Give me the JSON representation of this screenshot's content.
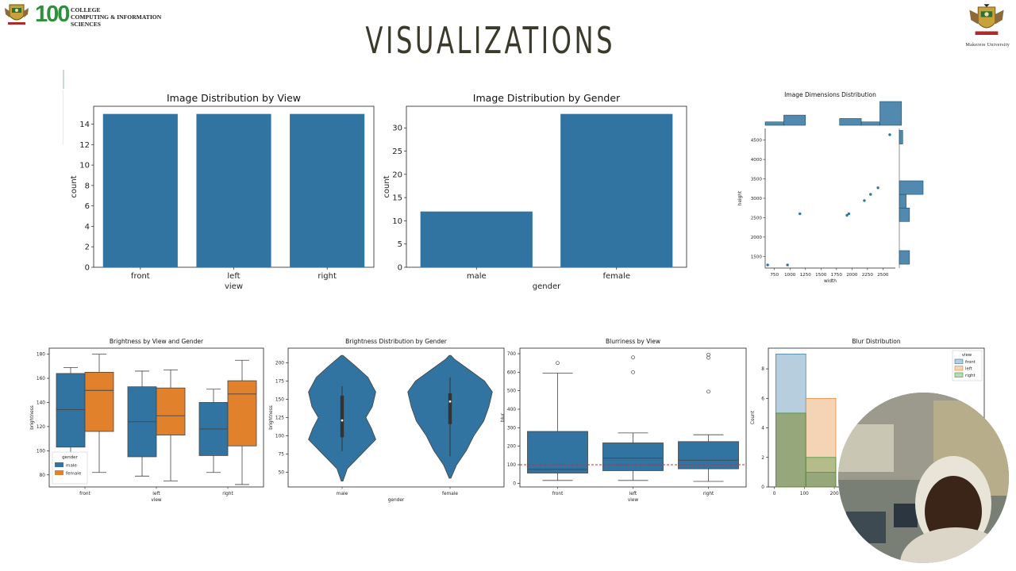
{
  "header": {
    "college_number": "100",
    "college_name_lines": [
      "COLLEGE",
      "COMPUTING & INFORMATION",
      "SCIENCES"
    ],
    "university_caption": "Makerere University",
    "page_title": "VISUALIZATIONS"
  },
  "colors": {
    "blue": "#3274a1",
    "orange": "#e1812c",
    "green": "#3a923a",
    "title": "#3b3a2a"
  },
  "icons": {
    "left_logo": "makerere-crest-icon",
    "right_logo": "makerere-crest-icon",
    "webcam": "presenter-webcam"
  },
  "chart_data": [
    {
      "id": "view",
      "type": "bar",
      "title": "Image Distribution by View",
      "xlabel": "view",
      "ylabel": "count",
      "categories": [
        "front",
        "left",
        "right"
      ],
      "values": [
        15,
        15,
        15
      ],
      "ylim": [
        0,
        15.75
      ],
      "yticks": [
        0,
        2,
        4,
        6,
        8,
        10,
        12,
        14
      ]
    },
    {
      "id": "gender",
      "type": "bar",
      "title": "Image Distribution by Gender",
      "xlabel": "gender",
      "ylabel": "count",
      "categories": [
        "male",
        "female"
      ],
      "values": [
        12,
        33
      ],
      "ylim": [
        0,
        34.65
      ],
      "yticks": [
        0,
        5,
        10,
        15,
        20,
        25,
        30
      ]
    },
    {
      "id": "dims",
      "type": "scatter",
      "title": "Image Dimensions Distribution",
      "xlabel": "width",
      "ylabel": "height",
      "xlim": [
        600,
        2700
      ],
      "ylim": [
        1200,
        4800
      ],
      "xticks": [
        750,
        1000,
        1250,
        1500,
        1750,
        2000,
        2250,
        2500
      ],
      "yticks": [
        1500,
        2000,
        2500,
        3000,
        3500,
        4000,
        4500
      ],
      "points": [
        {
          "x": 640,
          "y": 1280
        },
        {
          "x": 960,
          "y": 1280
        },
        {
          "x": 1160,
          "y": 2600
        },
        {
          "x": 1920,
          "y": 2560
        },
        {
          "x": 1950,
          "y": 2600
        },
        {
          "x": 2200,
          "y": 2940
        },
        {
          "x": 2300,
          "y": 3100
        },
        {
          "x": 2420,
          "y": 3270
        },
        {
          "x": 2610,
          "y": 4640
        }
      ],
      "top_hist": [
        {
          "x0": 600,
          "x1": 900,
          "v": 1
        },
        {
          "x0": 900,
          "x1": 1250,
          "v": 3
        },
        {
          "x0": 1800,
          "x1": 2150,
          "v": 2
        },
        {
          "x0": 2150,
          "x1": 2450,
          "v": 1
        },
        {
          "x0": 2450,
          "x1": 2800,
          "v": 7
        }
      ],
      "right_hist": [
        {
          "y0": 1300,
          "y1": 1650,
          "v": 3
        },
        {
          "y0": 2400,
          "y1": 2750,
          "v": 3
        },
        {
          "y0": 2750,
          "y1": 3100,
          "v": 2
        },
        {
          "y0": 3100,
          "y1": 3450,
          "v": 7
        },
        {
          "y0": 4400,
          "y1": 4750,
          "v": 1
        }
      ]
    },
    {
      "id": "bright",
      "type": "box",
      "title": "Brightness by View and Gender",
      "xlabel": "view",
      "ylabel": "brightness",
      "categories": [
        "front",
        "left",
        "right"
      ],
      "ylim": [
        70,
        185
      ],
      "yticks": [
        80,
        100,
        120,
        140,
        160,
        180
      ],
      "legend_title": "gender",
      "legend_position": "lower-left",
      "series": [
        {
          "name": "male",
          "boxes": [
            {
              "min": 93,
              "q1": 103,
              "med": 134,
              "q3": 164,
              "max": 169
            },
            {
              "min": 79,
              "q1": 95,
              "med": 124,
              "q3": 153,
              "max": 166
            },
            {
              "min": 82,
              "q1": 96,
              "med": 118,
              "q3": 140,
              "max": 151
            }
          ]
        },
        {
          "name": "female",
          "boxes": [
            {
              "min": 82,
              "q1": 116,
              "med": 150,
              "q3": 165,
              "max": 180
            },
            {
              "min": 75,
              "q1": 113,
              "med": 129,
              "q3": 152,
              "max": 167
            },
            {
              "min": 72,
              "q1": 104,
              "med": 147,
              "q3": 158,
              "max": 175
            }
          ]
        }
      ]
    },
    {
      "id": "violin",
      "type": "violin",
      "title": "Brightness Distribution by Gender",
      "xlabel": "gender",
      "ylabel": "brightness",
      "categories": [
        "male",
        "female"
      ],
      "ylim": [
        30,
        220
      ],
      "yticks": [
        50,
        75,
        100,
        125,
        150,
        175,
        200
      ],
      "violins": [
        {
          "name": "male",
          "min": 79,
          "q1": 98,
          "med": 121,
          "q3": 155,
          "max": 168,
          "lo": 38,
          "hi": 210,
          "profile": [
            [
              38,
              0.02
            ],
            [
              55,
              0.12
            ],
            [
              75,
              0.45
            ],
            [
              95,
              0.78
            ],
            [
              110,
              0.68
            ],
            [
              125,
              0.55
            ],
            [
              140,
              0.7
            ],
            [
              160,
              0.78
            ],
            [
              180,
              0.6
            ],
            [
              195,
              0.32
            ],
            [
              210,
              0.02
            ]
          ]
        },
        {
          "name": "female",
          "min": 72,
          "q1": 116,
          "med": 147,
          "q3": 158,
          "max": 180,
          "lo": 42,
          "hi": 210,
          "profile": [
            [
              42,
              0.02
            ],
            [
              60,
              0.15
            ],
            [
              80,
              0.38
            ],
            [
              100,
              0.55
            ],
            [
              120,
              0.78
            ],
            [
              140,
              0.9
            ],
            [
              160,
              0.98
            ],
            [
              175,
              0.8
            ],
            [
              190,
              0.45
            ],
            [
              205,
              0.1
            ],
            [
              210,
              0.02
            ]
          ]
        }
      ]
    },
    {
      "id": "blur",
      "type": "box",
      "title": "Blurriness by View",
      "xlabel": "view",
      "ylabel": "blur",
      "categories": [
        "front",
        "left",
        "right"
      ],
      "ylim": [
        -20,
        730
      ],
      "yticks": [
        0,
        100,
        200,
        300,
        400,
        500,
        600,
        700
      ],
      "threshold": 100,
      "boxes": [
        {
          "min": 15,
          "q1": 55,
          "med": 75,
          "q3": 280,
          "max": 595,
          "outliers": [
            650
          ]
        },
        {
          "min": 15,
          "q1": 68,
          "med": 135,
          "q3": 218,
          "max": 272,
          "outliers": [
            600,
            680
          ]
        },
        {
          "min": 10,
          "q1": 78,
          "med": 125,
          "q3": 225,
          "max": 262,
          "outliers": [
            495,
            678,
            695
          ]
        }
      ]
    },
    {
      "id": "blurdist",
      "type": "histogram",
      "title": "Blur Distribution",
      "xlabel": "",
      "ylabel": "Count",
      "xlim": [
        -20,
        700
      ],
      "ylim": [
        0,
        9.4
      ],
      "xticks": [
        0,
        100,
        200
      ],
      "yticks": [
        0,
        2,
        4,
        6,
        8
      ],
      "legend_title": "view",
      "legend_position": "upper-right",
      "series": [
        {
          "name": "front",
          "bins": [
            {
              "x0": 5,
              "x1": 105,
              "v": 9
            },
            {
              "x0": 105,
              "x1": 205,
              "v": 1
            }
          ]
        },
        {
          "name": "left",
          "bins": [
            {
              "x0": 5,
              "x1": 105,
              "v": 5
            },
            {
              "x0": 105,
              "x1": 205,
              "v": 6
            }
          ]
        },
        {
          "name": "right",
          "bins": [
            {
              "x0": 5,
              "x1": 105,
              "v": 5
            },
            {
              "x0": 105,
              "x1": 205,
              "v": 2
            }
          ]
        }
      ]
    }
  ]
}
